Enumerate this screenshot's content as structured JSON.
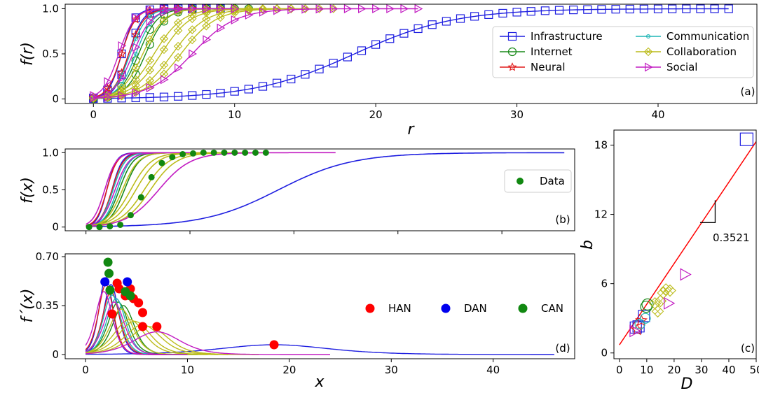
{
  "colors": {
    "Infrastructure": "#1f1fe0",
    "Internet": "#1a8a1a",
    "Neural": "#e01a1a",
    "Communication": "#1fb5b5",
    "Collaboration": "#bcbc1c",
    "Social": "#c21cc2",
    "fit_red": "#ff0000",
    "HAN": "#ff0000",
    "DAN": "#0000ee",
    "CAN": "#118811",
    "Data": "#118811"
  },
  "chart_data": [
    {
      "panel": "a",
      "type": "line",
      "panel_label": "(a)",
      "xlabel": "r",
      "ylabel": "f(r)",
      "xlim": [
        -2,
        47
      ],
      "ylim": [
        -0.05,
        1.05
      ],
      "xticks": [
        0,
        10,
        20,
        30,
        40
      ],
      "yticks": [
        0,
        0.5,
        1.0
      ],
      "ytick_labels": [
        "0",
        "0.5",
        "1.0"
      ],
      "legend": {
        "placement": "center-right",
        "entries": [
          {
            "name": "Infrastructure",
            "marker": "square-icon"
          },
          {
            "name": "Communication",
            "marker": "small-circle-icon"
          },
          {
            "name": "Internet",
            "marker": "circle-icon"
          },
          {
            "name": "Collaboration",
            "marker": "diamond-x-icon"
          },
          {
            "name": "Neural",
            "marker": "star-icon"
          },
          {
            "name": "Social",
            "marker": "triangle-right-icon"
          }
        ]
      },
      "series": [
        {
          "name": "Infrastructure",
          "marker": "square",
          "x0": 18.5,
          "k": 0.28,
          "xmax": 45
        },
        {
          "name": "Infrastructure",
          "marker": "square",
          "x0": 2.0,
          "k": 2.2,
          "xmax": 9
        },
        {
          "name": "Infrastructure",
          "marker": "square",
          "x0": 2.5,
          "k": 2.0,
          "xmax": 8
        },
        {
          "name": "Internet",
          "marker": "circle",
          "x0": 3.2,
          "k": 1.5,
          "xmax": 10
        },
        {
          "name": "Internet",
          "marker": "circle",
          "x0": 3.7,
          "k": 1.4,
          "xmax": 11
        },
        {
          "name": "Neural",
          "marker": "star",
          "x0": 2.0,
          "k": 2.0,
          "xmax": 8
        },
        {
          "name": "Neural",
          "marker": "star",
          "x0": 2.5,
          "k": 1.8,
          "xmax": 9
        },
        {
          "name": "Communication",
          "marker": "dot",
          "x0": 2.6,
          "k": 1.7,
          "xmax": 9
        },
        {
          "name": "Communication",
          "marker": "dot",
          "x0": 3.0,
          "k": 1.6,
          "xmax": 10
        },
        {
          "name": "Collaboration",
          "marker": "diamond",
          "x0": 3.5,
          "k": 1.3,
          "xmax": 12
        },
        {
          "name": "Collaboration",
          "marker": "diamond",
          "x0": 4.3,
          "k": 1.0,
          "xmax": 13
        },
        {
          "name": "Collaboration",
          "marker": "diamond",
          "x0": 4.8,
          "k": 0.95,
          "xmax": 14
        },
        {
          "name": "Collaboration",
          "marker": "diamond",
          "x0": 5.6,
          "k": 0.85,
          "xmax": 15
        },
        {
          "name": "Collaboration",
          "marker": "diamond",
          "x0": 6.2,
          "k": 0.8,
          "xmax": 17
        },
        {
          "name": "Social",
          "marker": "triangle",
          "x0": 1.8,
          "k": 1.8,
          "xmax": 8
        },
        {
          "name": "Social",
          "marker": "triangle",
          "x0": 2.8,
          "k": 1.5,
          "xmax": 10
        },
        {
          "name": "Social",
          "marker": "triangle",
          "x0": 7.0,
          "k": 0.65,
          "xmax": 23
        }
      ]
    },
    {
      "panel": "b",
      "type": "line",
      "panel_label": "(b)",
      "xlabel": "",
      "ylabel": "f(x)",
      "xlim": [
        -2,
        47
      ],
      "ylim": [
        -0.05,
        1.05
      ],
      "yticks": [
        0,
        0.5,
        1.0
      ],
      "ytick_labels": [
        "0",
        "0.5",
        "1.0"
      ],
      "legend": {
        "placement": "center-right",
        "entries": [
          {
            "name": "Data",
            "marker": "filled-circle-icon"
          }
        ]
      },
      "data_points": {
        "x": [
          0.3,
          1.3,
          2.3,
          3.3,
          4.3,
          5.3,
          6.3,
          7.3,
          8.3,
          9.3,
          10.3,
          11.3,
          12.3,
          13.3,
          14.3,
          15.3,
          16.3,
          17.3
        ],
        "y": [
          0.0,
          0.0,
          0.01,
          0.03,
          0.16,
          0.4,
          0.67,
          0.86,
          0.94,
          0.98,
          0.99,
          1.0,
          1.0,
          1.0,
          1.0,
          1.0,
          1.0,
          1.0
        ]
      },
      "series": [
        {
          "name": "Infrastructure",
          "x0": 18.5,
          "k": 0.28,
          "xmax": 46
        },
        {
          "name": "Infrastructure",
          "x0": 2.0,
          "k": 2.2,
          "xmax": 9
        },
        {
          "name": "Infrastructure",
          "x0": 2.5,
          "k": 2.0,
          "xmax": 8
        },
        {
          "name": "Internet",
          "x0": 3.2,
          "k": 1.5,
          "xmax": 10
        },
        {
          "name": "Internet",
          "x0": 3.7,
          "k": 1.4,
          "xmax": 11
        },
        {
          "name": "Neural",
          "x0": 2.0,
          "k": 2.0,
          "xmax": 8
        },
        {
          "name": "Neural",
          "x0": 2.5,
          "k": 1.8,
          "xmax": 9
        },
        {
          "name": "Communication",
          "x0": 2.6,
          "k": 1.7,
          "xmax": 9
        },
        {
          "name": "Communication",
          "x0": 3.0,
          "k": 1.6,
          "xmax": 10
        },
        {
          "name": "Collaboration",
          "x0": 3.5,
          "k": 1.3,
          "xmax": 12
        },
        {
          "name": "Collaboration",
          "x0": 4.3,
          "k": 1.0,
          "xmax": 13
        },
        {
          "name": "Collaboration",
          "x0": 4.8,
          "k": 0.95,
          "xmax": 14
        },
        {
          "name": "Collaboration",
          "x0": 5.6,
          "k": 0.85,
          "xmax": 15
        },
        {
          "name": "Collaboration",
          "x0": 6.2,
          "k": 0.8,
          "xmax": 17
        },
        {
          "name": "Social",
          "x0": 1.8,
          "k": 1.8,
          "xmax": 8
        },
        {
          "name": "Social",
          "x0": 2.8,
          "k": 1.5,
          "xmax": 10
        },
        {
          "name": "Social",
          "x0": 7.0,
          "k": 0.65,
          "xmax": 24
        }
      ]
    },
    {
      "panel": "d",
      "type": "line",
      "panel_label": "(d)",
      "xlabel": "x",
      "ylabel": "f´(x)",
      "xlim": [
        -2,
        48
      ],
      "ylim": [
        -0.03,
        0.72
      ],
      "xticks": [
        0,
        10,
        20,
        30,
        40
      ],
      "yticks": [
        0,
        0.35,
        0.7
      ],
      "ytick_labels": [
        "0",
        "0.35",
        "0.70"
      ],
      "legend": {
        "placement": "center-right",
        "entries": [
          {
            "name": "HAN",
            "marker": "filled-circle-icon"
          },
          {
            "name": "DAN",
            "marker": "filled-circle-icon"
          },
          {
            "name": "CAN",
            "marker": "filled-circle-icon"
          }
        ]
      },
      "series": [
        {
          "name": "Infrastructure",
          "x0": 18.5,
          "k": 0.28,
          "xmax": 46
        },
        {
          "name": "Infrastructure",
          "x0": 2.0,
          "k": 2.2,
          "xmax": 9
        },
        {
          "name": "Infrastructure",
          "x0": 2.5,
          "k": 2.0,
          "xmax": 8
        },
        {
          "name": "Internet",
          "x0": 3.2,
          "k": 1.5,
          "xmax": 10
        },
        {
          "name": "Internet",
          "x0": 3.7,
          "k": 1.4,
          "xmax": 11
        },
        {
          "name": "Neural",
          "x0": 2.0,
          "k": 2.0,
          "xmax": 8
        },
        {
          "name": "Neural",
          "x0": 2.5,
          "k": 1.8,
          "xmax": 9
        },
        {
          "name": "Communication",
          "x0": 2.6,
          "k": 1.7,
          "xmax": 9
        },
        {
          "name": "Communication",
          "x0": 3.0,
          "k": 1.6,
          "xmax": 10
        },
        {
          "name": "Collaboration",
          "x0": 3.5,
          "k": 1.3,
          "xmax": 12
        },
        {
          "name": "Collaboration",
          "x0": 4.3,
          "k": 1.0,
          "xmax": 13
        },
        {
          "name": "Collaboration",
          "x0": 4.8,
          "k": 0.95,
          "xmax": 14
        },
        {
          "name": "Collaboration",
          "x0": 5.6,
          "k": 0.85,
          "xmax": 15
        },
        {
          "name": "Collaboration",
          "x0": 6.2,
          "k": 0.8,
          "xmax": 17
        },
        {
          "name": "Social",
          "x0": 1.8,
          "k": 1.8,
          "xmax": 8
        },
        {
          "name": "Social",
          "x0": 2.8,
          "k": 1.5,
          "xmax": 10
        },
        {
          "name": "Social",
          "x0": 7.0,
          "k": 0.65,
          "xmax": 24
        }
      ],
      "peaks": [
        {
          "group": "HAN",
          "x": 2.6,
          "y": 0.29
        },
        {
          "group": "HAN",
          "x": 3.1,
          "y": 0.51
        },
        {
          "group": "HAN",
          "x": 3.3,
          "y": 0.47
        },
        {
          "group": "HAN",
          "x": 3.9,
          "y": 0.42
        },
        {
          "group": "HAN",
          "x": 4.4,
          "y": 0.47
        },
        {
          "group": "HAN",
          "x": 4.7,
          "y": 0.4
        },
        {
          "group": "HAN",
          "x": 5.2,
          "y": 0.37
        },
        {
          "group": "HAN",
          "x": 5.6,
          "y": 0.3
        },
        {
          "group": "HAN",
          "x": 5.6,
          "y": 0.2
        },
        {
          "group": "HAN",
          "x": 7.0,
          "y": 0.2
        },
        {
          "group": "HAN",
          "x": 18.5,
          "y": 0.07
        },
        {
          "group": "DAN",
          "x": 1.9,
          "y": 0.52
        },
        {
          "group": "DAN",
          "x": 4.1,
          "y": 0.52
        },
        {
          "group": "CAN",
          "x": 2.2,
          "y": 0.66
        },
        {
          "group": "CAN",
          "x": 2.3,
          "y": 0.58
        },
        {
          "group": "CAN",
          "x": 2.4,
          "y": 0.46
        },
        {
          "group": "CAN",
          "x": 3.9,
          "y": 0.45
        },
        {
          "group": "CAN",
          "x": 4.4,
          "y": 0.42
        }
      ]
    },
    {
      "panel": "c",
      "type": "scatter",
      "panel_label": "(c)",
      "xlabel": "D",
      "ylabel": "b",
      "xlim": [
        -2,
        50
      ],
      "ylim": [
        -0.5,
        19.3
      ],
      "xticks": [
        0,
        10,
        20,
        30,
        40,
        50
      ],
      "yticks": [
        0,
        6,
        12,
        18
      ],
      "slope_label": "0.3521",
      "fit": {
        "slope": 0.3521,
        "intercept": 0.7,
        "x": [
          0,
          50
        ]
      },
      "points": [
        {
          "name": "Infrastructure",
          "marker": "square",
          "x": 46.5,
          "y": 18.5
        },
        {
          "name": "Infrastructure",
          "marker": "square",
          "x": 6.0,
          "y": 2.2
        },
        {
          "name": "Infrastructure",
          "marker": "square",
          "x": 7.0,
          "y": 2.3
        },
        {
          "name": "Infrastructure",
          "marker": "square",
          "x": 9.0,
          "y": 3.2
        },
        {
          "name": "Internet",
          "marker": "circle",
          "x": 9.8,
          "y": 4.0
        },
        {
          "name": "Internet",
          "marker": "circle",
          "x": 10.3,
          "y": 4.2
        },
        {
          "name": "Neural",
          "marker": "star",
          "x": 6.5,
          "y": 2.0
        },
        {
          "name": "Neural",
          "marker": "star",
          "x": 8.0,
          "y": 2.8
        },
        {
          "name": "Communication",
          "marker": "dot",
          "x": 7.5,
          "y": 2.5
        },
        {
          "name": "Communication",
          "marker": "dot",
          "x": 9.5,
          "y": 3.0
        },
        {
          "name": "Collaboration",
          "marker": "diamond",
          "x": 13.0,
          "y": 4.3
        },
        {
          "name": "Collaboration",
          "marker": "diamond",
          "x": 14.0,
          "y": 3.6
        },
        {
          "name": "Collaboration",
          "marker": "diamond",
          "x": 15.0,
          "y": 4.5
        },
        {
          "name": "Collaboration",
          "marker": "diamond",
          "x": 16.0,
          "y": 5.2
        },
        {
          "name": "Collaboration",
          "marker": "diamond",
          "x": 17.0,
          "y": 5.5
        },
        {
          "name": "Collaboration",
          "marker": "diamond",
          "x": 18.5,
          "y": 5.4
        },
        {
          "name": "Social",
          "marker": "triangle",
          "x": 5.5,
          "y": 1.9
        },
        {
          "name": "Social",
          "marker": "triangle",
          "x": 18.0,
          "y": 4.3
        },
        {
          "name": "Social",
          "marker": "triangle",
          "x": 24.0,
          "y": 6.8
        }
      ]
    }
  ]
}
